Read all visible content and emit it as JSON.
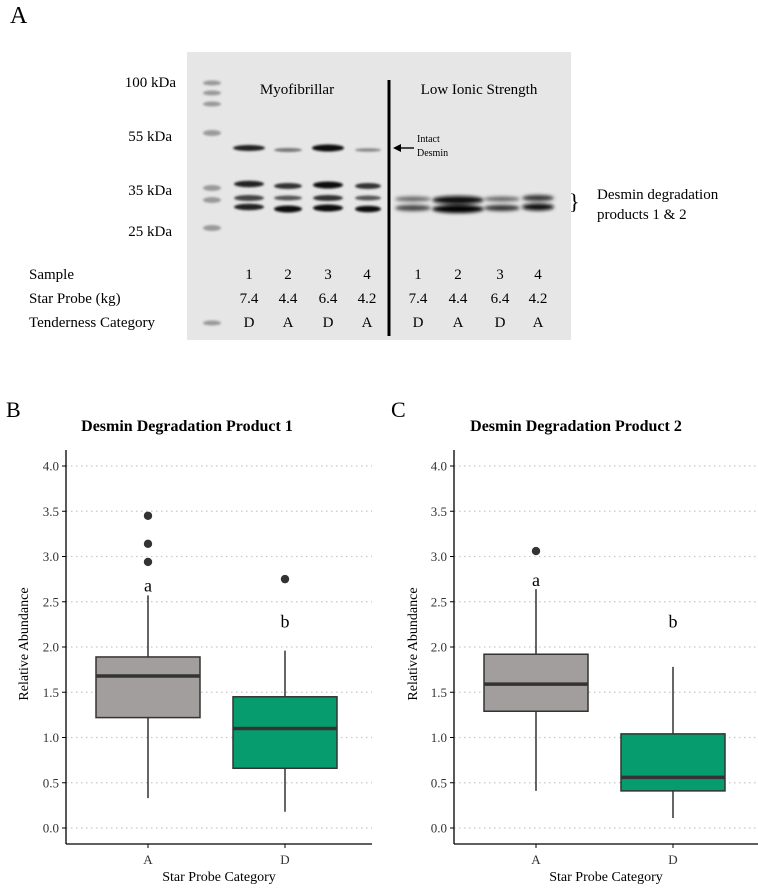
{
  "panel_a": {
    "letter": "A",
    "mw_markers": [
      "100 kDa",
      "55 kDa",
      "35 kDa",
      "25 kDa"
    ],
    "section_left": "Myofibrillar",
    "section_right": "Low Ionic Strength",
    "intact_label_1": "Intact",
    "intact_label_2": "Desmin",
    "degradation_label_1": "Desmin degradation",
    "degradation_label_2": "products 1 & 2",
    "brace": "}",
    "row_labels": [
      "Sample",
      "Star Probe (kg)",
      "Tenderness Category"
    ],
    "lanes": [
      {
        "sample": "1",
        "star_probe": "7.4",
        "category": "D"
      },
      {
        "sample": "2",
        "star_probe": "4.4",
        "category": "A"
      },
      {
        "sample": "3",
        "star_probe": "6.4",
        "category": "D"
      },
      {
        "sample": "4",
        "star_probe": "4.2",
        "category": "A"
      },
      {
        "sample": "1",
        "star_probe": "7.4",
        "category": "D"
      },
      {
        "sample": "2",
        "star_probe": "4.4",
        "category": "A"
      },
      {
        "sample": "3",
        "star_probe": "6.4",
        "category": "D"
      },
      {
        "sample": "4",
        "star_probe": "4.2",
        "category": "A"
      }
    ]
  },
  "chart_data": [
    {
      "panel": "B",
      "type": "box",
      "title": "Desmin Degradation Product 1",
      "xlabel": "Star Probe Category",
      "ylabel": "Relative Abundance",
      "ylim": [
        0,
        4.0
      ],
      "yticks": [
        "0.0",
        "0.5",
        "1.0",
        "1.5",
        "2.0",
        "2.5",
        "3.0",
        "3.5",
        "4.0"
      ],
      "categories": [
        "A",
        "D"
      ],
      "colors": [
        "#a39e9e",
        "#079c6e"
      ],
      "boxes": [
        {
          "category": "A",
          "whisker_low": 0.33,
          "q1": 1.22,
          "median": 1.68,
          "q3": 1.89,
          "whisker_high": 2.57,
          "outliers": [
            2.94,
            3.14,
            3.45
          ],
          "letter": "a",
          "letter_y": 2.68
        },
        {
          "category": "D",
          "whisker_low": 0.18,
          "q1": 0.66,
          "median": 1.1,
          "q3": 1.45,
          "whisker_high": 1.96,
          "outliers": [
            2.75
          ],
          "letter": "b",
          "letter_y": 2.28
        }
      ]
    },
    {
      "panel": "C",
      "type": "box",
      "title": "Desmin Degradation Product 2",
      "xlabel": "Star Probe Category",
      "ylabel": "Relative Abundance",
      "ylim": [
        0,
        4.0
      ],
      "yticks": [
        "0.0",
        "0.5",
        "1.0",
        "1.5",
        "2.0",
        "2.5",
        "3.0",
        "3.5",
        "4.0"
      ],
      "categories": [
        "A",
        "D"
      ],
      "colors": [
        "#a39e9e",
        "#079c6e"
      ],
      "boxes": [
        {
          "category": "A",
          "whisker_low": 0.41,
          "q1": 1.29,
          "median": 1.59,
          "q3": 1.92,
          "whisker_high": 2.64,
          "outliers": [
            3.06
          ],
          "letter": "a",
          "letter_y": 2.74
        },
        {
          "category": "D",
          "whisker_low": 0.11,
          "q1": 0.41,
          "median": 0.56,
          "q3": 1.04,
          "whisker_high": 1.78,
          "outliers": [],
          "letter": "b",
          "letter_y": 2.28
        }
      ]
    }
  ]
}
